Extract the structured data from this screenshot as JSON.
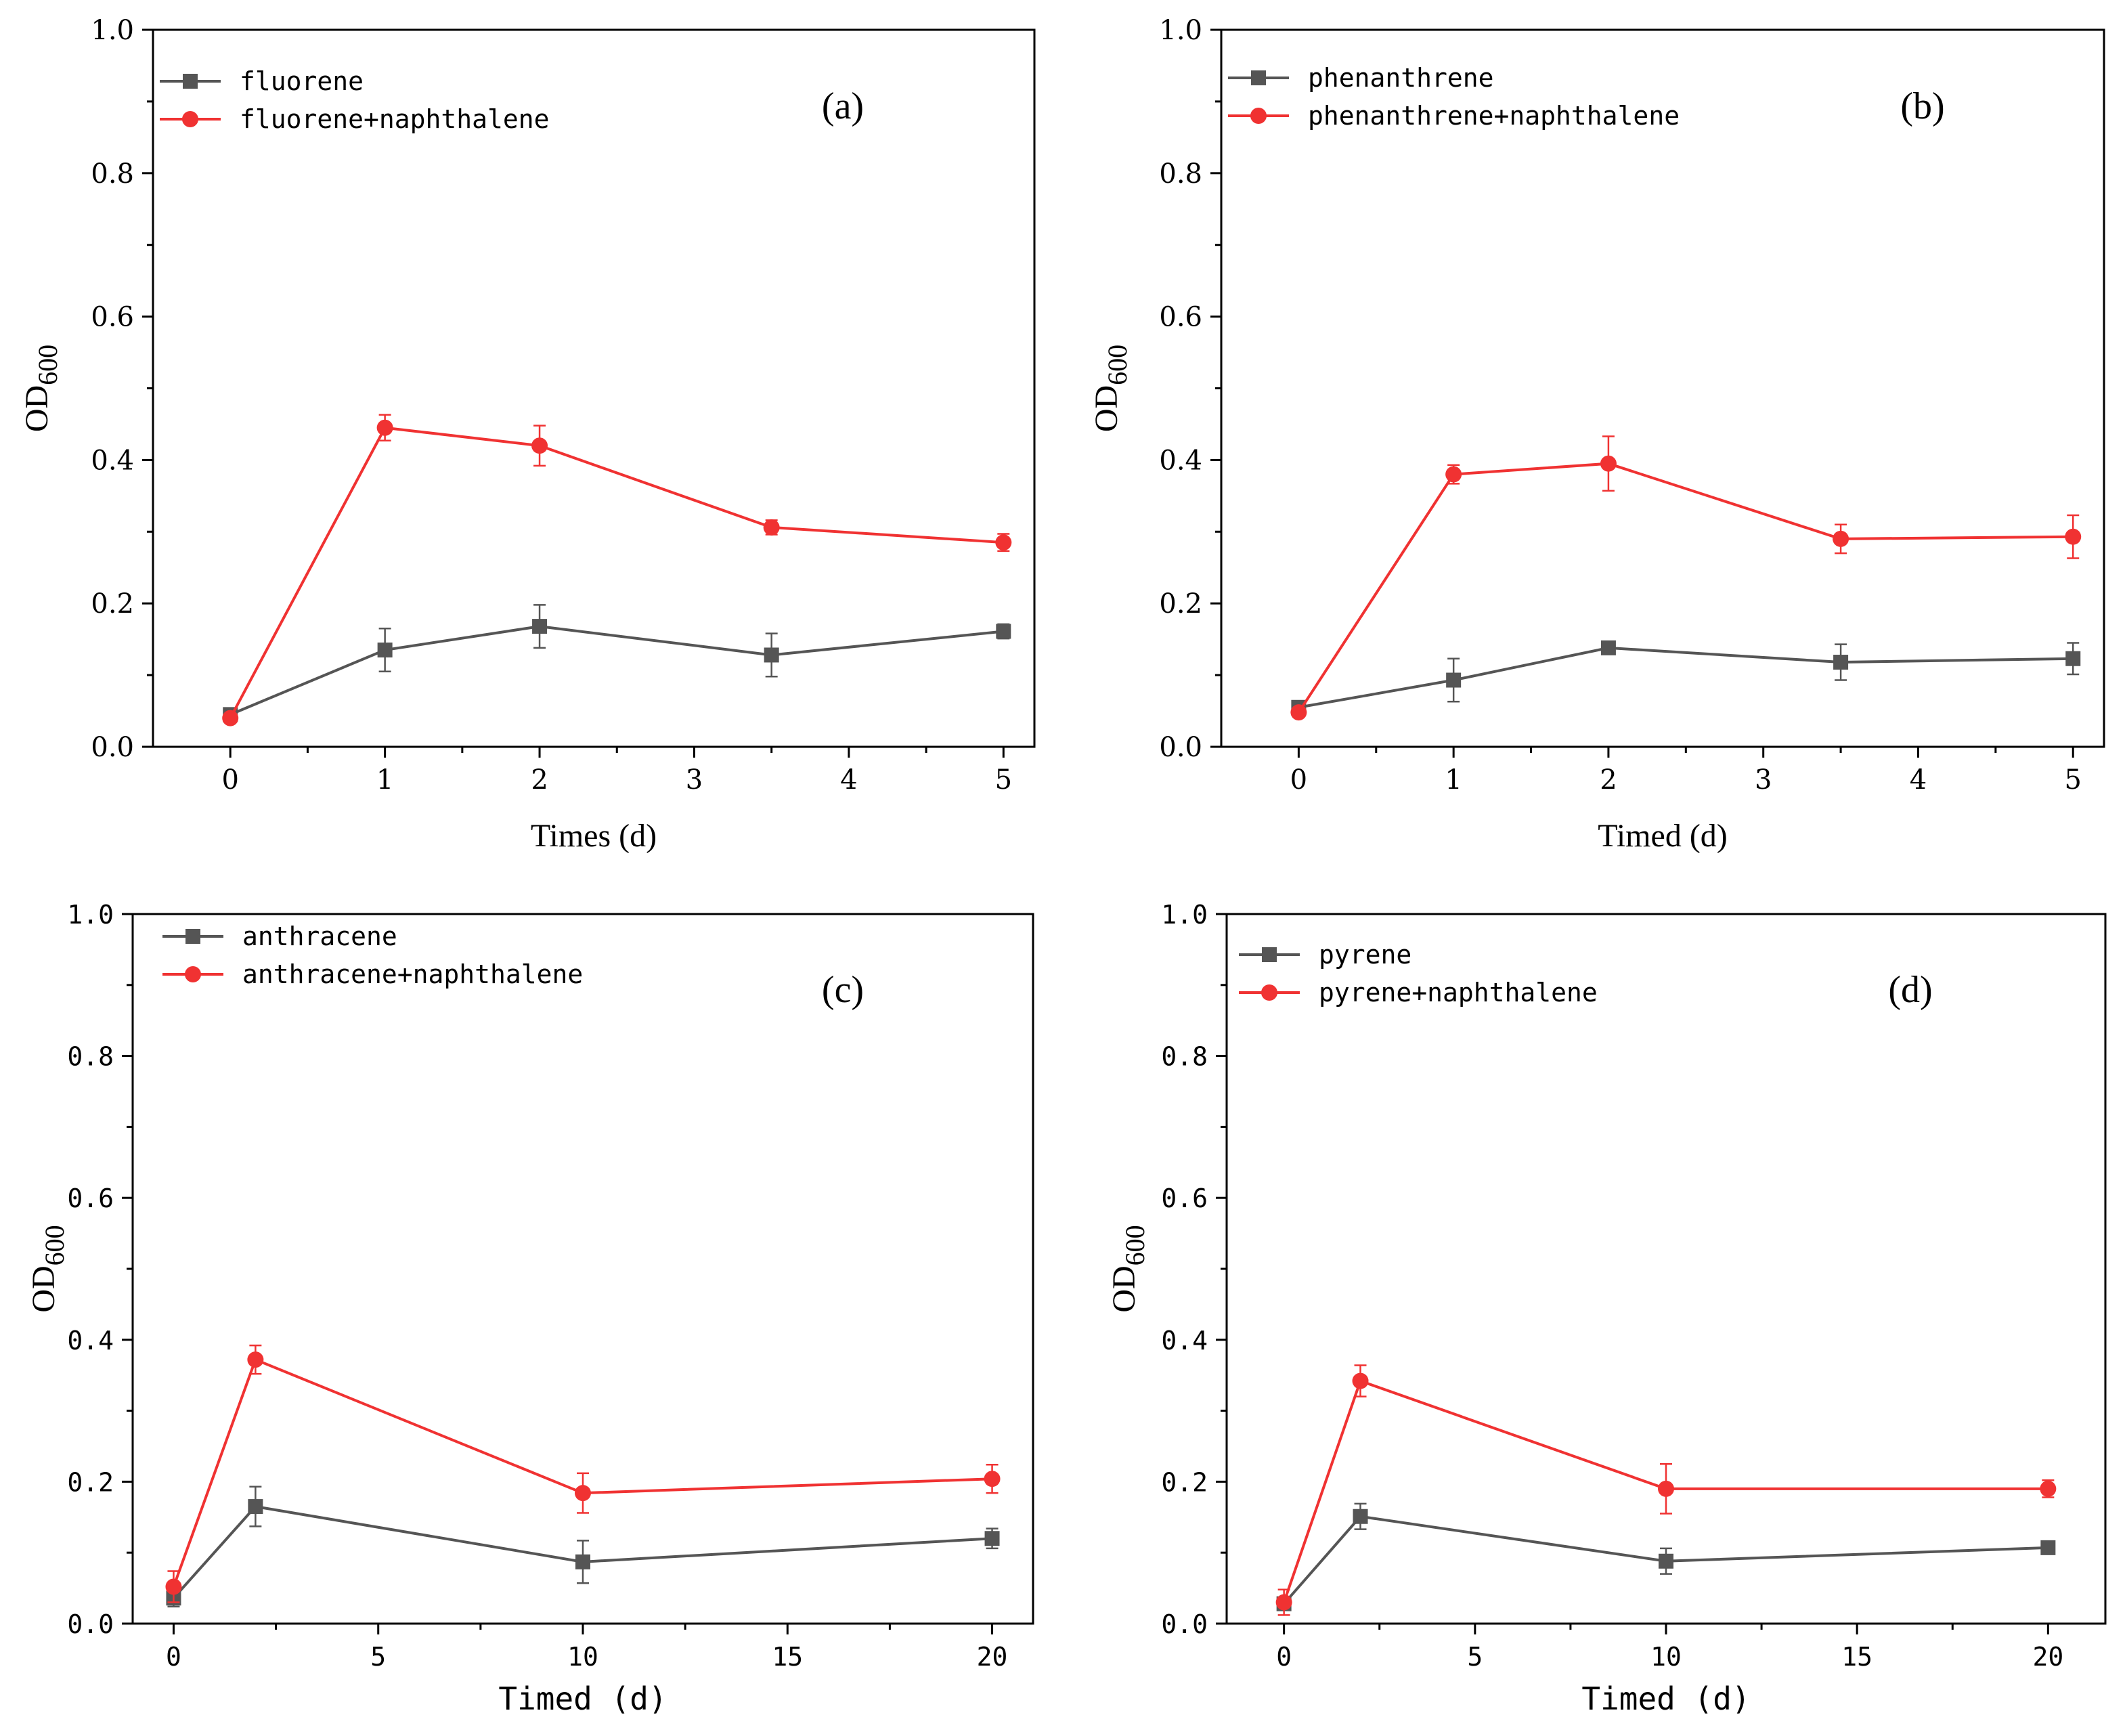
{
  "colors": {
    "gray": "#555555",
    "red": "#f03232",
    "axis": "#000000"
  },
  "chart_data": [
    {
      "type": "line",
      "panel_label": "(a)",
      "xlabel": "Times (d)",
      "ylabel": "OD",
      "ylabel_sub": "600",
      "xlim": [
        -0.5,
        5.2
      ],
      "ylim": [
        0,
        1.0
      ],
      "xticks": [
        0,
        1,
        2,
        3,
        4,
        5
      ],
      "xtick_labels": [
        "0",
        "1",
        "2",
        "3",
        "4",
        "5"
      ],
      "yticks": [
        0,
        0.2,
        0.4,
        0.6,
        0.8,
        1.0
      ],
      "ytick_labels": [
        "0.0",
        "0.2",
        "0.4",
        "0.6",
        "0.8",
        "1.0"
      ],
      "legend_position": "top-left",
      "series": [
        {
          "name": "fluorene",
          "color": "#555555",
          "marker": "square",
          "x": [
            0,
            1,
            2,
            3.5,
            5
          ],
          "y": [
            0.045,
            0.135,
            0.168,
            0.128,
            0.161
          ],
          "err": [
            0.008,
            0.03,
            0.03,
            0.03,
            0.01
          ]
        },
        {
          "name": "fluorene+naphthalene",
          "color": "#f03232",
          "marker": "circle",
          "x": [
            0,
            1,
            2,
            3.5,
            5
          ],
          "y": [
            0.04,
            0.445,
            0.42,
            0.306,
            0.285
          ],
          "err": [
            0.005,
            0.018,
            0.028,
            0.01,
            0.012
          ]
        }
      ]
    },
    {
      "type": "line",
      "panel_label": "(b)",
      "xlabel": "Timed (d)",
      "ylabel": "OD",
      "ylabel_sub": "600",
      "xlim": [
        -0.5,
        5.2
      ],
      "ylim": [
        0,
        1.0
      ],
      "xticks": [
        0,
        1,
        2,
        3,
        4,
        5
      ],
      "xtick_labels": [
        "0",
        "1",
        "2",
        "3",
        "4",
        "5"
      ],
      "yticks": [
        0,
        0.2,
        0.4,
        0.6,
        0.8,
        1.0
      ],
      "ytick_labels": [
        "0.0",
        "0.2",
        "0.4",
        "0.6",
        "0.8",
        "1.0"
      ],
      "legend_position": "top-left",
      "series": [
        {
          "name": "phenanthrene",
          "color": "#555555",
          "marker": "square",
          "x": [
            0,
            1,
            2,
            3.5,
            5
          ],
          "y": [
            0.055,
            0.093,
            0.138,
            0.118,
            0.123
          ],
          "err": [
            0.008,
            0.03,
            0.008,
            0.025,
            0.022
          ]
        },
        {
          "name": "phenanthrene+naphthalene",
          "color": "#f03232",
          "marker": "circle",
          "x": [
            0,
            1,
            2,
            3.5,
            5
          ],
          "y": [
            0.048,
            0.38,
            0.395,
            0.29,
            0.293
          ],
          "err": [
            0.005,
            0.013,
            0.038,
            0.02,
            0.03
          ]
        }
      ]
    },
    {
      "type": "line",
      "panel_label": "(c)",
      "xlabel": "Timed (d)",
      "ylabel": "OD",
      "ylabel_sub": "600",
      "xlim": [
        -1,
        21
      ],
      "ylim": [
        0,
        1.0
      ],
      "xticks": [
        0,
        5,
        10,
        15,
        20
      ],
      "xtick_labels": [
        "0",
        "5",
        "10",
        "15",
        "20"
      ],
      "yticks": [
        0,
        0.2,
        0.4,
        0.6,
        0.8,
        1.0
      ],
      "ytick_labels": [
        "0.0",
        "0.2",
        "0.4",
        "0.6",
        "0.8",
        "1.0"
      ],
      "legend_position": "top-left",
      "series": [
        {
          "name": "anthracene",
          "color": "#555555",
          "marker": "square",
          "x": [
            0,
            2,
            10,
            20
          ],
          "y": [
            0.036,
            0.165,
            0.087,
            0.12
          ],
          "err": [
            0.012,
            0.028,
            0.03,
            0.014
          ]
        },
        {
          "name": "anthracene+naphthalene",
          "color": "#f03232",
          "marker": "circle",
          "x": [
            0,
            2,
            10,
            20
          ],
          "y": [
            0.052,
            0.372,
            0.184,
            0.204
          ],
          "err": [
            0.022,
            0.02,
            0.028,
            0.02
          ]
        }
      ]
    },
    {
      "type": "line",
      "panel_label": "(d)",
      "xlabel": "Timed (d)",
      "ylabel": "OD",
      "ylabel_sub": "600",
      "xlim": [
        -1.5,
        21.5
      ],
      "ylim": [
        0,
        1.0
      ],
      "xticks": [
        0,
        5,
        10,
        15,
        20
      ],
      "xtick_labels": [
        "0",
        "5",
        "10",
        "15",
        "20"
      ],
      "yticks": [
        0,
        0.2,
        0.4,
        0.6,
        0.8,
        1.0
      ],
      "ytick_labels": [
        "0.0",
        "0.2",
        "0.4",
        "0.6",
        "0.8",
        "1.0"
      ],
      "legend_position": "top-left",
      "series": [
        {
          "name": "pyrene",
          "color": "#555555",
          "marker": "square",
          "x": [
            0,
            2,
            10,
            20
          ],
          "y": [
            0.028,
            0.151,
            0.088,
            0.107
          ],
          "err": [
            0.008,
            0.018,
            0.018,
            0.006
          ]
        },
        {
          "name": "pyrene+naphthalene",
          "color": "#f03232",
          "marker": "circle",
          "x": [
            0,
            2,
            10,
            20
          ],
          "y": [
            0.03,
            0.342,
            0.19,
            0.19
          ],
          "err": [
            0.018,
            0.022,
            0.035,
            0.012
          ]
        }
      ]
    }
  ]
}
